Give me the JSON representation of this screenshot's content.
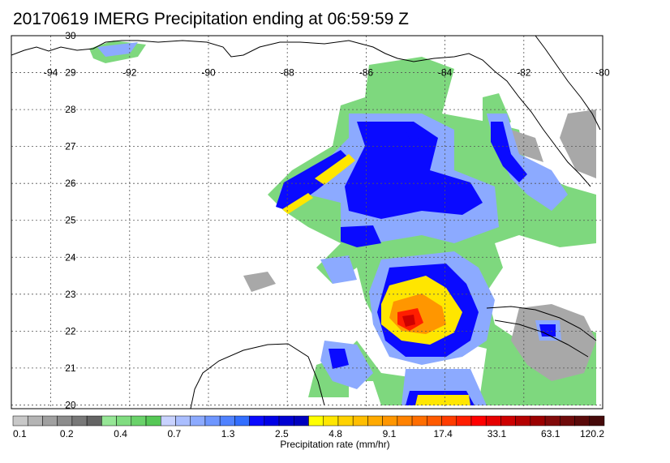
{
  "title": "20170619 IMERG Precipitation ending at 06:59:59 Z",
  "map": {
    "lon_labels": [
      "-94",
      "-92",
      "-90",
      "-88",
      "-86",
      "-84",
      "-82",
      "-80"
    ],
    "lat_labels": [
      "20",
      "21",
      "22",
      "23",
      "24",
      "25",
      "26",
      "27",
      "28",
      "29",
      "30"
    ],
    "lon_range": [
      -95,
      -80
    ],
    "lat_range": [
      19.9,
      30
    ],
    "gridlines": true,
    "colors": {
      "coastline": "#000000",
      "gridline": "#555555"
    }
  },
  "colorbar": {
    "tick_labels": [
      "0.1",
      "0.2",
      "0.4",
      "0.7",
      "1.3",
      "2.5",
      "4.8",
      "9.1",
      "17.4",
      "33.1",
      "63.1",
      "120.2"
    ],
    "units_label": "Precipitation rate (mm/hr)",
    "colors": [
      "#c8c8c8",
      "#b4b4b4",
      "#a0a0a0",
      "#8c8c8c",
      "#787878",
      "#646464",
      "#96e696",
      "#80dc80",
      "#6ad26a",
      "#56c856",
      "#c8d2ff",
      "#aabeff",
      "#8caaff",
      "#6e96ff",
      "#5082ff",
      "#326eff",
      "#0a0aff",
      "#0000e6",
      "#0000d2",
      "#0000be",
      "#ffff00",
      "#ffe600",
      "#ffd200",
      "#ffbe00",
      "#ffaa00",
      "#ff9600",
      "#ff8200",
      "#ff6e00",
      "#ff5a00",
      "#ff3c00",
      "#ff1e00",
      "#ff0000",
      "#e60000",
      "#cd0000",
      "#b40000",
      "#9b0000",
      "#820a0a",
      "#6e0a0a",
      "#5a0a0a",
      "#460a0a"
    ]
  }
}
